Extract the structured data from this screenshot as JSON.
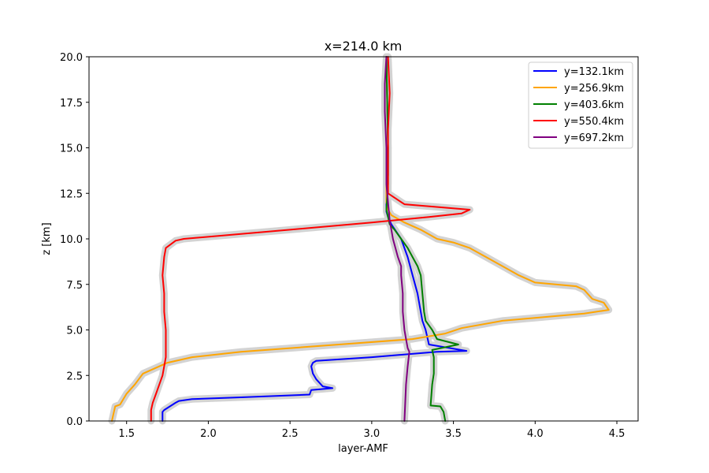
{
  "chart_data": {
    "type": "line",
    "title": "x=214.0 km",
    "xlabel": "layer-AMF",
    "ylabel": "z [km]",
    "xlim": [
      1.27,
      4.63
    ],
    "ylim": [
      0,
      20
    ],
    "xticks": [
      1.5,
      2.0,
      2.5,
      3.0,
      3.5,
      4.0,
      4.5
    ],
    "xtick_labels": [
      "1.5",
      "2.0",
      "2.5",
      "3.0",
      "3.5",
      "4.0",
      "4.5"
    ],
    "yticks": [
      0,
      2.5,
      5,
      7.5,
      10,
      12.5,
      15,
      17.5,
      20
    ],
    "ytick_labels": [
      "0.0",
      "2.5",
      "5.0",
      "7.5",
      "10.0",
      "12.5",
      "15.0",
      "17.5",
      "20.0"
    ],
    "grid": false,
    "legend_position": "top-right",
    "band_color": "#d3d3d3",
    "series": [
      {
        "name": "y=132.1km",
        "color": "#0000ff",
        "x": [
          1.72,
          1.72,
          1.73,
          1.8,
          1.82,
          1.9,
          2.2,
          2.62,
          2.63,
          2.76,
          2.7,
          2.66,
          2.64,
          2.63,
          2.64,
          2.66,
          3.0,
          3.4,
          3.58,
          3.35,
          3.33,
          3.31,
          3.3,
          3.28,
          3.25,
          3.22,
          3.18,
          3.15,
          3.12,
          3.1,
          3.09,
          3.09,
          3.1,
          3.1,
          3.09
        ],
        "y": [
          0,
          0.5,
          0.6,
          1.0,
          1.1,
          1.2,
          1.3,
          1.45,
          1.7,
          1.8,
          1.9,
          2.3,
          2.6,
          3.0,
          3.2,
          3.3,
          3.5,
          3.8,
          3.85,
          4.2,
          5.0,
          5.5,
          6.0,
          7.0,
          8.0,
          9.0,
          10.0,
          10.4,
          10.8,
          11.2,
          11.5,
          12.0,
          13.5,
          15.0,
          20.0
        ]
      },
      {
        "name": "y=256.9km",
        "color": "#ffa500",
        "x": [
          1.41,
          1.43,
          1.46,
          1.5,
          1.55,
          1.6,
          1.7,
          1.75,
          1.9,
          2.2,
          2.8,
          3.25,
          3.45,
          3.55,
          3.8,
          4.3,
          4.45,
          4.42,
          4.35,
          4.32,
          4.3,
          4.25,
          4.0,
          3.9,
          3.8,
          3.7,
          3.6,
          3.5,
          3.4,
          3.3,
          3.2,
          3.12,
          3.1,
          3.09,
          3.09,
          3.1,
          3.09
        ],
        "y": [
          0,
          0.8,
          0.9,
          1.5,
          2.0,
          2.6,
          3.0,
          3.2,
          3.5,
          3.8,
          4.2,
          4.5,
          4.8,
          5.1,
          5.5,
          5.9,
          6.1,
          6.5,
          6.7,
          7.0,
          7.2,
          7.4,
          7.6,
          8.0,
          8.5,
          9.0,
          9.5,
          9.8,
          10.0,
          10.5,
          10.9,
          11.3,
          11.6,
          12.0,
          13.5,
          15.0,
          20.0
        ]
      },
      {
        "name": "y=403.6km",
        "color": "#008000",
        "x": [
          3.45,
          3.44,
          3.42,
          3.36,
          3.37,
          3.38,
          3.38,
          3.37,
          3.53,
          3.4,
          3.37,
          3.33,
          3.32,
          3.31,
          3.3,
          3.28,
          3.25,
          3.22,
          3.18,
          3.14,
          3.11,
          3.1,
          3.09,
          3.1,
          3.1,
          3.09
        ],
        "y": [
          0,
          0.5,
          0.8,
          0.85,
          2.0,
          2.6,
          3.5,
          3.9,
          4.2,
          4.5,
          5.0,
          5.5,
          6.0,
          7.0,
          8.0,
          8.5,
          9.0,
          9.5,
          10.0,
          10.5,
          10.8,
          11.2,
          11.6,
          13.0,
          15.0,
          20.0
        ]
      },
      {
        "name": "y=550.4km",
        "color": "#ff0000",
        "x": [
          1.65,
          1.65,
          1.66,
          1.68,
          1.7,
          1.72,
          1.73,
          1.74,
          1.74,
          1.74,
          1.73,
          1.73,
          1.72,
          1.73,
          1.74,
          1.8,
          1.85,
          2.5,
          3.0,
          3.35,
          3.55,
          3.6,
          3.2,
          3.1,
          3.1,
          3.1,
          3.11,
          3.1
        ],
        "y": [
          0,
          0.6,
          1.0,
          1.5,
          2.0,
          2.5,
          3.0,
          3.5,
          4.0,
          5.0,
          6.0,
          7.0,
          8.0,
          9.0,
          9.5,
          9.9,
          10.0,
          10.5,
          10.9,
          11.2,
          11.4,
          11.6,
          11.9,
          12.5,
          14.0,
          16.0,
          18.0,
          20.0
        ]
      },
      {
        "name": "y=697.2km",
        "color": "#800080",
        "x": [
          3.2,
          3.21,
          3.22,
          3.23,
          3.22,
          3.21,
          3.2,
          3.19,
          3.19,
          3.18,
          3.18,
          3.16,
          3.13,
          3.12,
          3.11,
          3.1,
          3.09,
          3.09,
          3.08,
          3.08,
          3.09
        ],
        "y": [
          0,
          2.0,
          3.0,
          3.8,
          4.0,
          4.5,
          5.0,
          6.0,
          7.0,
          8.0,
          8.5,
          9.0,
          10.0,
          10.5,
          11.0,
          12.0,
          13.0,
          15.0,
          17.0,
          18.5,
          20.0
        ]
      }
    ]
  }
}
